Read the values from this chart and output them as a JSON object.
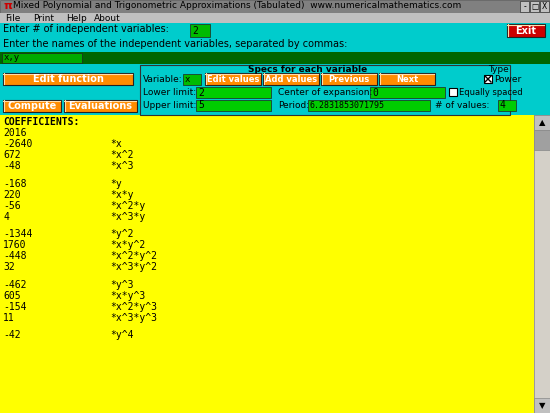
{
  "title": "Mixed Polynomial and Trigonometric Approximations (Tabulated)  www.numericalmathematics.com",
  "title_pi": "π",
  "menu_items": [
    "File",
    "Print",
    "Help",
    "About"
  ],
  "label1": "Enter # of independent variables:",
  "label2": "Enter the names of the independent variables, separated by commas:",
  "input1_value": "2",
  "input2_value": "x,y",
  "specs_label": "Specs for each variable",
  "variable_label": "Variable:",
  "variable_value": "x",
  "lower_label": "Lower limit:",
  "lower_value": "2",
  "center_label": "Center of expansion:",
  "center_value": "0",
  "upper_label": "Upper limit:",
  "upper_value": "5",
  "period_label": "Period:",
  "period_value": "6.2831853071795",
  "nvalues_label": "# of values:",
  "nvalues_value": "4",
  "type_label": "Type",
  "power_label": "Power",
  "equally_label": "Equally spaced",
  "btn_edit_values": "Edit values",
  "btn_add_values": "Add values",
  "btn_previous": "Previous",
  "btn_next": "Next",
  "btn_edit_function": "Edit function",
  "btn_compute": "Compute",
  "btn_evaluations": "Evaluations",
  "btn_exit": "Exit",
  "coeff_header": "COEFFICIENTS:",
  "coefficients": [
    [
      "2016",
      ""
    ],
    [
      "-2640",
      "*x"
    ],
    [
      "672",
      "*x^2"
    ],
    [
      "-48",
      "*x^3"
    ],
    [
      "",
      ""
    ],
    [
      "-168",
      "*y"
    ],
    [
      "220",
      "*x*y"
    ],
    [
      "-56",
      "*x^2*y"
    ],
    [
      "4",
      "*x^3*y"
    ],
    [
      "",
      ""
    ],
    [
      "-1344",
      "*y^2"
    ],
    [
      "1760",
      "*x*y^2"
    ],
    [
      "-448",
      "*x^2*y^2"
    ],
    [
      "32",
      "*x^3*y^2"
    ],
    [
      "",
      ""
    ],
    [
      "-462",
      "*y^3"
    ],
    [
      "605",
      "*x*y^3"
    ],
    [
      "-154",
      "*x^2*y^3"
    ],
    [
      "11",
      "*x^3*y^3"
    ],
    [
      "",
      ""
    ],
    [
      "-42",
      "*y^4"
    ]
  ],
  "bg_cyan": "#00CCCC",
  "bg_yellow": "#FFFF00",
  "bg_green_dark": "#007700",
  "bg_green_input": "#00CC00",
  "bg_orange": "#FF8C00",
  "bg_red": "#CC0000",
  "bg_gray": "#C0C0C0",
  "bg_white": "#FFFFFF",
  "text_black": "#000000",
  "text_white": "#FFFFFF",
  "title_bar_color": "#808080",
  "scrollbar_color": "#A0A0A0"
}
